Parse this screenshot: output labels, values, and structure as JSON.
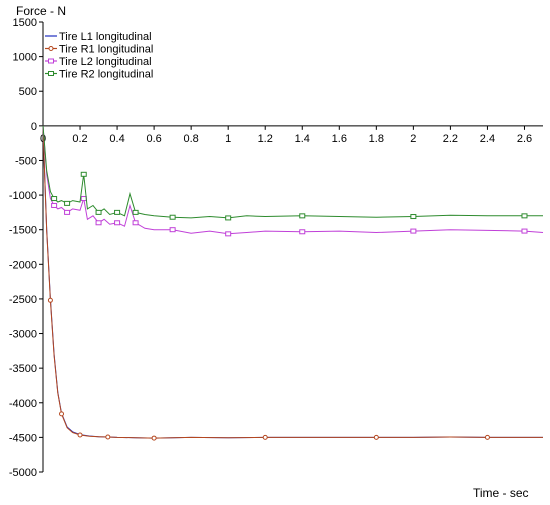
{
  "chart_data": {
    "type": "line",
    "ylabel": "Force - N",
    "xlabel": "Time - sec",
    "xlim": [
      0,
      2.7
    ],
    "ylim": [
      -5000,
      1500
    ],
    "x_ticks": [
      0.2,
      0.4,
      0.6,
      0.8,
      1,
      1.2,
      1.4,
      1.6,
      1.8,
      2,
      2.2,
      2.4,
      2.6
    ],
    "x_tick_labels": [
      "0.2",
      "0.4",
      "0.6",
      "0.8",
      "1",
      "1.2",
      "1.4",
      "1.6",
      "1.8",
      "2",
      "2.2",
      "2.4",
      "2.6"
    ],
    "y_ticks": [
      1500,
      1000,
      500,
      0,
      -500,
      -1000,
      -1500,
      -2000,
      -2500,
      -3000,
      -3500,
      -4000,
      -4500,
      -5000
    ],
    "y_tick_labels": [
      "1500",
      "1000",
      "500",
      "0",
      "-500",
      "-1000",
      "-1500",
      "-2000",
      "-2500",
      "-3000",
      "-3500",
      "-4000",
      "-4500",
      "-5000"
    ],
    "origin_label": "0",
    "legend_position": "top-left",
    "series": [
      {
        "name": "Tire L1 longitudinal",
        "color": "#1f2fbf",
        "marker": "none",
        "x": [
          0,
          0.01,
          0.02,
          0.04,
          0.06,
          0.08,
          0.1,
          0.13,
          0.16,
          0.2,
          0.25,
          0.3,
          0.35,
          0.4,
          0.5,
          0.6,
          0.8,
          1.0,
          1.2,
          1.4,
          1.6,
          1.8,
          2.0,
          2.2,
          2.4,
          2.6,
          2.7
        ],
        "y": [
          0,
          -800,
          -1500,
          -2500,
          -3300,
          -3850,
          -4150,
          -4350,
          -4420,
          -4460,
          -4480,
          -4490,
          -4495,
          -4500,
          -4505,
          -4510,
          -4500,
          -4505,
          -4500,
          -4500,
          -4500,
          -4500,
          -4500,
          -4495,
          -4500,
          -4500,
          -4500
        ]
      },
      {
        "name": "Tire R1 longitudinal",
        "color": "#b5481f",
        "marker": "circle",
        "x": [
          0,
          0.01,
          0.02,
          0.04,
          0.06,
          0.08,
          0.1,
          0.13,
          0.16,
          0.2,
          0.25,
          0.3,
          0.35,
          0.4,
          0.5,
          0.6,
          0.8,
          1.0,
          1.2,
          1.4,
          1.6,
          1.8,
          2.0,
          2.2,
          2.4,
          2.6,
          2.7
        ],
        "y": [
          0,
          -810,
          -1520,
          -2520,
          -3320,
          -3860,
          -4160,
          -4360,
          -4430,
          -4465,
          -4485,
          -4490,
          -4495,
          -4500,
          -4505,
          -4510,
          -4500,
          -4505,
          -4500,
          -4500,
          -4500,
          -4500,
          -4500,
          -4495,
          -4500,
          -4500,
          -4500
        ]
      },
      {
        "name": "Tire L2 longitudinal",
        "color": "#c040d8",
        "marker": "square",
        "x": [
          0,
          0.02,
          0.04,
          0.06,
          0.08,
          0.1,
          0.13,
          0.16,
          0.2,
          0.22,
          0.24,
          0.27,
          0.3,
          0.33,
          0.36,
          0.4,
          0.44,
          0.47,
          0.5,
          0.55,
          0.6,
          0.7,
          0.8,
          0.9,
          1.0,
          1.1,
          1.2,
          1.4,
          1.6,
          1.8,
          2.0,
          2.2,
          2.4,
          2.6,
          2.7
        ],
        "y": [
          0,
          -700,
          -1050,
          -1150,
          -1200,
          -1180,
          -1250,
          -1200,
          -1220,
          -1050,
          -1350,
          -1300,
          -1400,
          -1350,
          -1420,
          -1400,
          -1450,
          -1150,
          -1400,
          -1480,
          -1500,
          -1500,
          -1550,
          -1520,
          -1560,
          -1540,
          -1520,
          -1530,
          -1520,
          -1540,
          -1520,
          -1500,
          -1510,
          -1520,
          -1540
        ]
      },
      {
        "name": "Tire R2 longitudinal",
        "color": "#2e8b2e",
        "marker": "square",
        "x": [
          0,
          0.02,
          0.04,
          0.06,
          0.08,
          0.1,
          0.13,
          0.16,
          0.2,
          0.22,
          0.24,
          0.27,
          0.3,
          0.33,
          0.36,
          0.4,
          0.44,
          0.47,
          0.5,
          0.55,
          0.6,
          0.7,
          0.8,
          0.9,
          1.0,
          1.1,
          1.2,
          1.4,
          1.6,
          1.8,
          2.0,
          2.2,
          2.4,
          2.6,
          2.7
        ],
        "y": [
          0,
          -650,
          -950,
          -1050,
          -1100,
          -1080,
          -1120,
          -1080,
          -1100,
          -700,
          -1200,
          -1150,
          -1250,
          -1200,
          -1280,
          -1250,
          -1300,
          -980,
          -1250,
          -1280,
          -1300,
          -1320,
          -1330,
          -1310,
          -1330,
          -1300,
          -1310,
          -1300,
          -1310,
          -1320,
          -1310,
          -1290,
          -1300,
          -1300,
          -1300
        ]
      }
    ]
  }
}
